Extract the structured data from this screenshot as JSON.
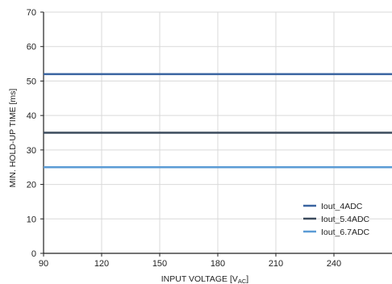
{
  "chart_data": {
    "type": "line",
    "xlabel_main": "INPUT VOLTAGE [V",
    "xlabel_sub": "AC",
    "xlabel_end": "]",
    "ylabel": "MIN. HOLD-UP TIME [ms]",
    "xlim": [
      90,
      270
    ],
    "ylim": [
      0,
      70
    ],
    "x_ticks": [
      90,
      120,
      150,
      180,
      210,
      240
    ],
    "y_ticks": [
      0,
      10,
      20,
      30,
      40,
      50,
      60,
      70
    ],
    "grid": true,
    "legend_position": "bottom-right",
    "x": [
      90,
      270
    ],
    "series": [
      {
        "name": "Iout_4ADC",
        "values": [
          52,
          52
        ],
        "color": "#3a64a0"
      },
      {
        "name": "Iout_5.4ADC",
        "values": [
          35,
          35
        ],
        "color": "#3b4a5c"
      },
      {
        "name": "Iout_6.7ADC",
        "values": [
          25,
          25
        ],
        "color": "#5b9bd5"
      }
    ]
  }
}
